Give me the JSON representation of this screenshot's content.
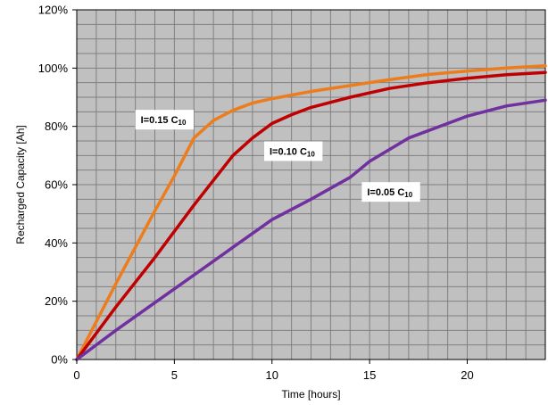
{
  "chart_data": {
    "type": "line",
    "xlabel": "Time [hours]",
    "ylabel": "Recharged Capacity [Ah]",
    "xlim": [
      0,
      24
    ],
    "ylim": [
      0,
      120
    ],
    "x_ticks": [
      "0",
      "5",
      "10",
      "15",
      "20"
    ],
    "y_ticks": [
      "0%",
      "20%",
      "40%",
      "60%",
      "80%",
      "100%",
      "120%"
    ],
    "grid": true,
    "plot_background": "#c0c0c0",
    "grid_color": "#808080",
    "series": [
      {
        "label": {
          "main": "I=0.15 C",
          "sub": "10"
        },
        "color": "#ed7d1c",
        "points": [
          [
            0,
            0
          ],
          [
            2,
            26
          ],
          [
            4,
            51
          ],
          [
            5,
            63
          ],
          [
            6,
            76
          ],
          [
            7,
            82
          ],
          [
            8,
            85.5
          ],
          [
            9,
            88
          ],
          [
            10,
            89.5
          ],
          [
            12,
            92
          ],
          [
            14,
            94
          ],
          [
            16,
            96
          ],
          [
            18,
            97.8
          ],
          [
            20,
            99
          ],
          [
            22,
            100
          ],
          [
            24,
            100.8
          ]
        ]
      },
      {
        "label": {
          "main": "I=0.10 C",
          "sub": "10"
        },
        "color": "#c00000",
        "points": [
          [
            0,
            0
          ],
          [
            2,
            18
          ],
          [
            4,
            35
          ],
          [
            6,
            53
          ],
          [
            8,
            70
          ],
          [
            9,
            76
          ],
          [
            10,
            81
          ],
          [
            11,
            84
          ],
          [
            12,
            86.5
          ],
          [
            14,
            90
          ],
          [
            16,
            93
          ],
          [
            18,
            95
          ],
          [
            20,
            96.5
          ],
          [
            22,
            97.7
          ],
          [
            24,
            98.5
          ]
        ]
      },
      {
        "label": {
          "main": "I=0.05 C",
          "sub": "10"
        },
        "color": "#7030a0",
        "points": [
          [
            0,
            0
          ],
          [
            2,
            10
          ],
          [
            4,
            19.5
          ],
          [
            6,
            29
          ],
          [
            8,
            38.5
          ],
          [
            10,
            48
          ],
          [
            12,
            55
          ],
          [
            14,
            62.5
          ],
          [
            15,
            68
          ],
          [
            17,
            76
          ],
          [
            19,
            81
          ],
          [
            20,
            83.5
          ],
          [
            22,
            87
          ],
          [
            24,
            89
          ]
        ]
      }
    ]
  }
}
